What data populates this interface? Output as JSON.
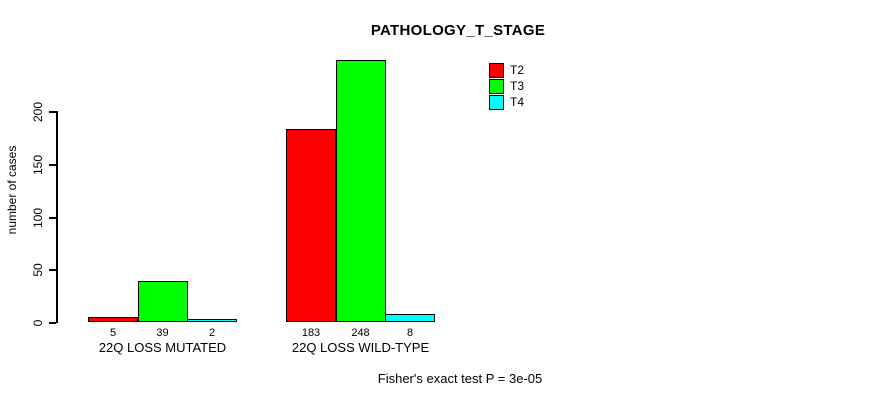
{
  "chart_data": {
    "type": "bar",
    "title": "PATHOLOGY_T_STAGE",
    "ylabel": "number of cases",
    "xlabel": "",
    "categories": [
      "22Q LOSS MUTATED",
      "22Q LOSS WILD-TYPE"
    ],
    "series": [
      {
        "name": "T2",
        "color": "#ff0000",
        "values": [
          5,
          183
        ]
      },
      {
        "name": "T3",
        "color": "#00ff00",
        "values": [
          39,
          248
        ]
      },
      {
        "name": "T4",
        "color": "#00ffff",
        "values": [
          2,
          8
        ]
      }
    ],
    "bar_value_labels": [
      [
        "5",
        "39",
        "2"
      ],
      [
        "183",
        "248",
        "8"
      ]
    ],
    "yticks": [
      0,
      50,
      100,
      150,
      200
    ],
    "ylim": [
      0,
      248
    ],
    "grid": false,
    "legend_position": "top-right",
    "legend_entries": [
      "T2",
      "T3",
      "T4"
    ],
    "footer": "Fisher's exact test P = 3e-05"
  },
  "colors": {
    "background": "#ffffff",
    "axis": "#000000",
    "bar_border": "#000000",
    "text": "#000000"
  }
}
